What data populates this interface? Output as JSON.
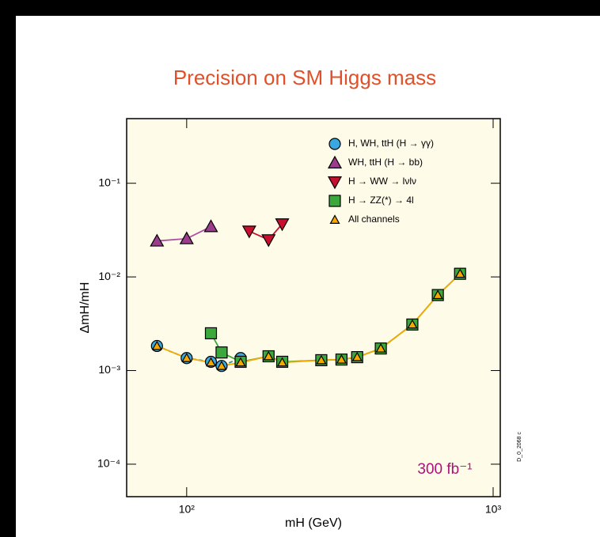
{
  "chart_data": {
    "type": "scatter",
    "title": "Precision on SM Higgs mass",
    "xlabel": "mH (GeV)",
    "ylabel": "ΔmH/mH",
    "annotation": "300 fb⁻¹",
    "side_note": "D_0_2068 c",
    "log_x": true,
    "log_y": true,
    "xlim": [
      63.7,
      1055
    ],
    "ylim": [
      4.5e-05,
      0.49
    ],
    "xticks": [
      {
        "value": 100,
        "label": "10²"
      },
      {
        "value": 1000,
        "label": "10³"
      }
    ],
    "yticks": [
      {
        "value": 0.0001,
        "label": "10⁻⁴"
      },
      {
        "value": 0.001,
        "label": "10⁻³"
      },
      {
        "value": 0.01,
        "label": "10⁻²"
      },
      {
        "value": 0.1,
        "label": "10⁻¹"
      }
    ],
    "legend": "top-right",
    "series": [
      {
        "name": "H, WH, ttH (H → γγ)",
        "color": "#3aa8e0",
        "marker": "circle",
        "line_style": "dashed",
        "line_color": "#2a9a9a",
        "x": [
          80,
          100,
          120,
          130,
          150
        ],
        "values": [
          0.00183,
          0.00136,
          0.00124,
          0.00112,
          0.00136
        ]
      },
      {
        "name": "WH, ttH (H → bb)",
        "color": "#9c3c8c",
        "marker": "triangle",
        "line_style": "solid",
        "line_color": "#b050a0",
        "x": [
          80,
          100,
          120
        ],
        "values": [
          0.0242,
          0.0256,
          0.0345
        ]
      },
      {
        "name": "H → WW → lνlν",
        "color": "#c8102e",
        "marker": "down-triangle",
        "line_style": "solid",
        "line_color": "#c8102e",
        "x": [
          160,
          185,
          205
        ],
        "values": [
          0.0308,
          0.0249,
          0.0368
        ]
      },
      {
        "name": "H → ZZ(*) → 4l",
        "color": "#3aa83a",
        "marker": "square",
        "line_style": "solid",
        "line_color": "#3aa83a",
        "x": [
          120,
          130,
          150,
          185,
          205,
          275,
          320,
          360,
          430,
          545,
          660,
          780
        ],
        "values": [
          0.0025,
          0.00156,
          0.00124,
          0.00142,
          0.00124,
          0.00129,
          0.00131,
          0.00139,
          0.00172,
          0.0031,
          0.0064,
          0.0108
        ]
      },
      {
        "name": "All channels",
        "color": "#f5a800",
        "marker": "small-triangle",
        "line_style": "solid",
        "line_color": "#f5a800",
        "x": [
          80,
          100,
          120,
          130,
          150,
          185,
          205,
          275,
          320,
          360,
          430,
          545,
          660,
          780
        ],
        "values": [
          0.00183,
          0.00136,
          0.00122,
          0.00112,
          0.00122,
          0.00142,
          0.00122,
          0.00129,
          0.00131,
          0.00139,
          0.00172,
          0.0031,
          0.0064,
          0.0108
        ]
      }
    ]
  }
}
